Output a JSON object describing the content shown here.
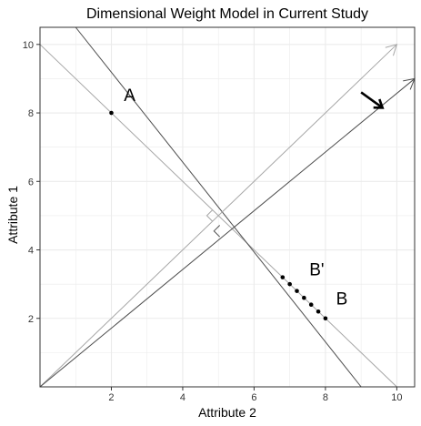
{
  "chart_data": {
    "type": "scatter",
    "title": "Dimensional Weight Model in Current Study",
    "xlabel": "Attribute 2",
    "ylabel": "Attribute 1",
    "xlim": [
      0,
      10.5
    ],
    "ylim": [
      0,
      10.5
    ],
    "xticks": [
      2,
      4,
      6,
      8,
      10
    ],
    "yticks": [
      2,
      4,
      6,
      8,
      10
    ],
    "grid": true,
    "colors": {
      "grid": "#ebebeb",
      "panel_border": "#333333",
      "light_line": "#a6a6a6",
      "dark_line": "#4d4d4d",
      "points": "#000000"
    },
    "lines": [
      {
        "from": [
          0,
          10
        ],
        "to": [
          10,
          0
        ],
        "shade": "light"
      },
      {
        "from": [
          1,
          10.5
        ],
        "to": [
          9,
          0
        ],
        "shade": "dark"
      },
      {
        "from": [
          0,
          0
        ],
        "to": [
          10,
          10
        ],
        "shade": "light",
        "arrowhead": true
      },
      {
        "from": [
          0,
          0
        ],
        "to": [
          10.5,
          9
        ],
        "shade": "dark",
        "arrowhead": true
      }
    ],
    "right_angle_markers": [
      {
        "at": [
          5,
          5
        ],
        "shade": "light"
      },
      {
        "at": [
          5.2,
          4.55
        ],
        "shade": "dark"
      }
    ],
    "points": [
      {
        "x": 2,
        "y": 8
      },
      {
        "x": 6.8,
        "y": 3.2
      },
      {
        "x": 7.0,
        "y": 3.0
      },
      {
        "x": 7.2,
        "y": 2.8
      },
      {
        "x": 7.4,
        "y": 2.6
      },
      {
        "x": 7.6,
        "y": 2.4
      },
      {
        "x": 7.8,
        "y": 2.2
      },
      {
        "x": 8,
        "y": 2
      }
    ],
    "annotations": [
      {
        "text": "A",
        "x": 2.35,
        "y": 8.35
      },
      {
        "text": "B'",
        "x": 7.55,
        "y": 3.25
      },
      {
        "text": "B",
        "x": 8.3,
        "y": 2.4
      }
    ],
    "direction_arrow": {
      "from": [
        9.0,
        8.6
      ],
      "to": [
        9.6,
        8.15
      ]
    }
  }
}
